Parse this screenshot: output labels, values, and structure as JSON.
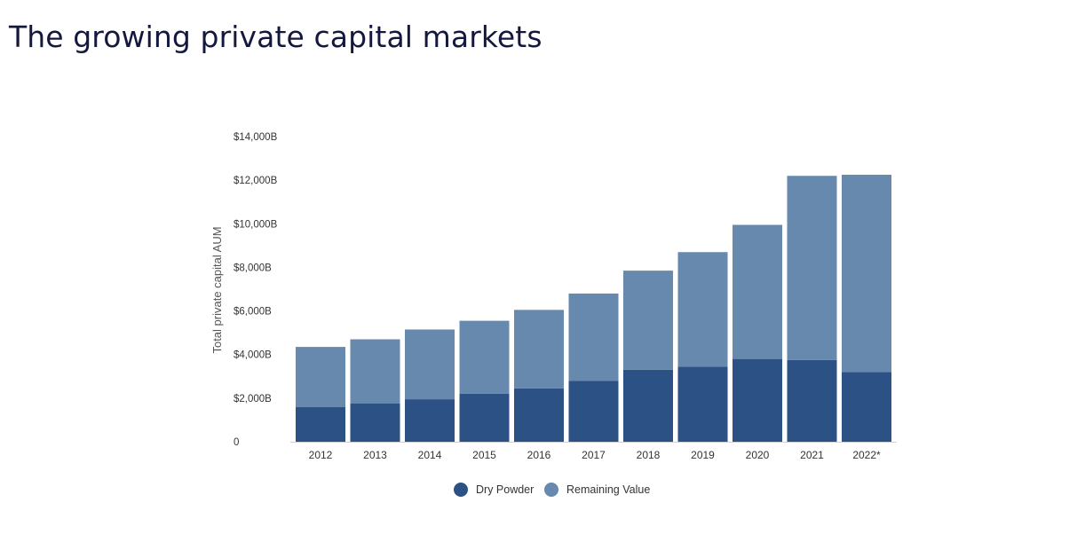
{
  "page": {
    "title": "The growing private capital markets"
  },
  "chart_data": {
    "type": "bar",
    "stacked": true,
    "title": "",
    "xlabel": "",
    "ylabel": "Total private capital AUM",
    "ylim": [
      0,
      14000
    ],
    "yticks": [
      0,
      2000,
      4000,
      6000,
      8000,
      10000,
      12000,
      14000
    ],
    "ytick_labels": [
      "0",
      "$2,000B",
      "$4,000B",
      "$6,000B",
      "$8,000B",
      "$10,000B",
      "$12,000B",
      "$14,000B"
    ],
    "categories": [
      "2012",
      "2013",
      "2014",
      "2015",
      "2016",
      "2017",
      "2018",
      "2019",
      "2020",
      "2021",
      "2022*"
    ],
    "series": [
      {
        "name": "Dry Powder",
        "color": "#2b5185",
        "values": [
          1600,
          1750,
          1950,
          2200,
          2450,
          2800,
          3300,
          3450,
          3800,
          3750,
          3200
        ]
      },
      {
        "name": "Remaining Value",
        "color": "#6689ad",
        "values": [
          2750,
          2950,
          3200,
          3350,
          3600,
          4000,
          4550,
          5250,
          6150,
          8450,
          9050
        ]
      }
    ],
    "grid": false,
    "legend_position": "bottom-center"
  }
}
